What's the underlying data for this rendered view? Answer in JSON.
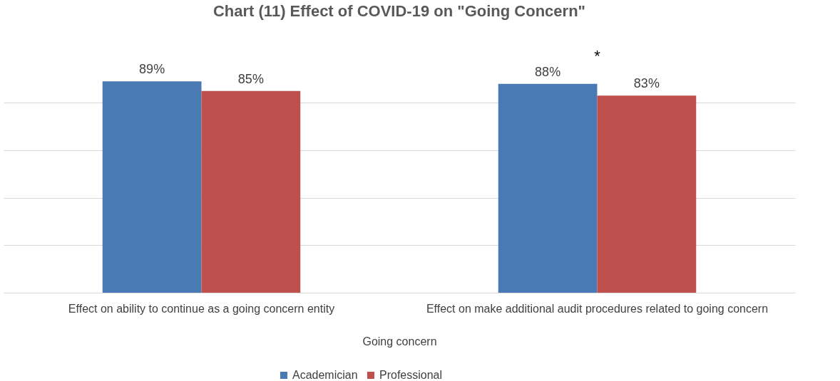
{
  "chart_data": {
    "type": "bar",
    "title": "Chart (11) Effect of COVID-19 on  \"Going Concern\"",
    "xlabel": "Going concern",
    "categories": [
      "Effect on ability to continue as a going concern entity",
      "Effect on make additional audit procedures  related to going concern"
    ],
    "series": [
      {
        "name": "Academician",
        "color": "#4a7ab4",
        "values": [
          89,
          88
        ],
        "value_labels": [
          "89%",
          "88%"
        ]
      },
      {
        "name": "Professional",
        "color": "#c0504d",
        "values": [
          85,
          83
        ],
        "value_labels": [
          "85%",
          "83%"
        ]
      }
    ],
    "tick_labels": "x",
    "grid": "y",
    "legend": "bottom",
    "annotations": [
      "*"
    ]
  }
}
